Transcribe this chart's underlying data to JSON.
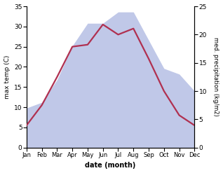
{
  "months": [
    "Jan",
    "Feb",
    "Mar",
    "Apr",
    "May",
    "Jun",
    "Jul",
    "Aug",
    "Sep",
    "Oct",
    "Nov",
    "Dec"
  ],
  "temperature": [
    5.5,
    10.5,
    17.5,
    25.0,
    25.5,
    30.5,
    28.0,
    29.5,
    22.0,
    14.0,
    8.0,
    5.5
  ],
  "precipitation": [
    7,
    8,
    12,
    18,
    22,
    22,
    24,
    24,
    19,
    14,
    13,
    10
  ],
  "temp_color": "#b03050",
  "precip_fill_color": "#c0c8e8",
  "precip_alpha": 1.0,
  "ylabel_left": "max temp (C)",
  "ylabel_right": "med. precipitation (kg/m2)",
  "xlabel": "date (month)",
  "ylim_left": [
    0,
    35
  ],
  "ylim_right": [
    0,
    25
  ],
  "yticks_left": [
    0,
    5,
    10,
    15,
    20,
    25,
    30,
    35
  ],
  "yticks_right": [
    0,
    5,
    10,
    15,
    20,
    25
  ],
  "background_color": "#ffffff",
  "temp_linewidth": 1.6
}
